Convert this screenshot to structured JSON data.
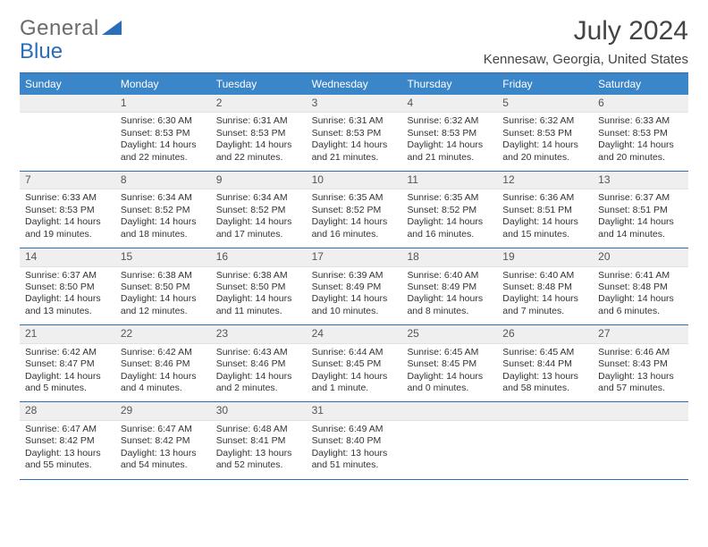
{
  "brand": {
    "part1": "General",
    "part2": "Blue"
  },
  "title": "July 2024",
  "subtitle": "Kennesaw, Georgia, United States",
  "dow": [
    "Sunday",
    "Monday",
    "Tuesday",
    "Wednesday",
    "Thursday",
    "Friday",
    "Saturday"
  ],
  "colors": {
    "header_bg": "#3a86c8",
    "border": "#2a6db8",
    "daynum_bg": "#efefef",
    "text": "#333333"
  },
  "weeks": [
    [
      {
        "n": "",
        "sr": "",
        "ss": "",
        "dl": ""
      },
      {
        "n": "1",
        "sr": "Sunrise: 6:30 AM",
        "ss": "Sunset: 8:53 PM",
        "dl": "Daylight: 14 hours and 22 minutes."
      },
      {
        "n": "2",
        "sr": "Sunrise: 6:31 AM",
        "ss": "Sunset: 8:53 PM",
        "dl": "Daylight: 14 hours and 22 minutes."
      },
      {
        "n": "3",
        "sr": "Sunrise: 6:31 AM",
        "ss": "Sunset: 8:53 PM",
        "dl": "Daylight: 14 hours and 21 minutes."
      },
      {
        "n": "4",
        "sr": "Sunrise: 6:32 AM",
        "ss": "Sunset: 8:53 PM",
        "dl": "Daylight: 14 hours and 21 minutes."
      },
      {
        "n": "5",
        "sr": "Sunrise: 6:32 AM",
        "ss": "Sunset: 8:53 PM",
        "dl": "Daylight: 14 hours and 20 minutes."
      },
      {
        "n": "6",
        "sr": "Sunrise: 6:33 AM",
        "ss": "Sunset: 8:53 PM",
        "dl": "Daylight: 14 hours and 20 minutes."
      }
    ],
    [
      {
        "n": "7",
        "sr": "Sunrise: 6:33 AM",
        "ss": "Sunset: 8:53 PM",
        "dl": "Daylight: 14 hours and 19 minutes."
      },
      {
        "n": "8",
        "sr": "Sunrise: 6:34 AM",
        "ss": "Sunset: 8:52 PM",
        "dl": "Daylight: 14 hours and 18 minutes."
      },
      {
        "n": "9",
        "sr": "Sunrise: 6:34 AM",
        "ss": "Sunset: 8:52 PM",
        "dl": "Daylight: 14 hours and 17 minutes."
      },
      {
        "n": "10",
        "sr": "Sunrise: 6:35 AM",
        "ss": "Sunset: 8:52 PM",
        "dl": "Daylight: 14 hours and 16 minutes."
      },
      {
        "n": "11",
        "sr": "Sunrise: 6:35 AM",
        "ss": "Sunset: 8:52 PM",
        "dl": "Daylight: 14 hours and 16 minutes."
      },
      {
        "n": "12",
        "sr": "Sunrise: 6:36 AM",
        "ss": "Sunset: 8:51 PM",
        "dl": "Daylight: 14 hours and 15 minutes."
      },
      {
        "n": "13",
        "sr": "Sunrise: 6:37 AM",
        "ss": "Sunset: 8:51 PM",
        "dl": "Daylight: 14 hours and 14 minutes."
      }
    ],
    [
      {
        "n": "14",
        "sr": "Sunrise: 6:37 AM",
        "ss": "Sunset: 8:50 PM",
        "dl": "Daylight: 14 hours and 13 minutes."
      },
      {
        "n": "15",
        "sr": "Sunrise: 6:38 AM",
        "ss": "Sunset: 8:50 PM",
        "dl": "Daylight: 14 hours and 12 minutes."
      },
      {
        "n": "16",
        "sr": "Sunrise: 6:38 AM",
        "ss": "Sunset: 8:50 PM",
        "dl": "Daylight: 14 hours and 11 minutes."
      },
      {
        "n": "17",
        "sr": "Sunrise: 6:39 AM",
        "ss": "Sunset: 8:49 PM",
        "dl": "Daylight: 14 hours and 10 minutes."
      },
      {
        "n": "18",
        "sr": "Sunrise: 6:40 AM",
        "ss": "Sunset: 8:49 PM",
        "dl": "Daylight: 14 hours and 8 minutes."
      },
      {
        "n": "19",
        "sr": "Sunrise: 6:40 AM",
        "ss": "Sunset: 8:48 PM",
        "dl": "Daylight: 14 hours and 7 minutes."
      },
      {
        "n": "20",
        "sr": "Sunrise: 6:41 AM",
        "ss": "Sunset: 8:48 PM",
        "dl": "Daylight: 14 hours and 6 minutes."
      }
    ],
    [
      {
        "n": "21",
        "sr": "Sunrise: 6:42 AM",
        "ss": "Sunset: 8:47 PM",
        "dl": "Daylight: 14 hours and 5 minutes."
      },
      {
        "n": "22",
        "sr": "Sunrise: 6:42 AM",
        "ss": "Sunset: 8:46 PM",
        "dl": "Daylight: 14 hours and 4 minutes."
      },
      {
        "n": "23",
        "sr": "Sunrise: 6:43 AM",
        "ss": "Sunset: 8:46 PM",
        "dl": "Daylight: 14 hours and 2 minutes."
      },
      {
        "n": "24",
        "sr": "Sunrise: 6:44 AM",
        "ss": "Sunset: 8:45 PM",
        "dl": "Daylight: 14 hours and 1 minute."
      },
      {
        "n": "25",
        "sr": "Sunrise: 6:45 AM",
        "ss": "Sunset: 8:45 PM",
        "dl": "Daylight: 14 hours and 0 minutes."
      },
      {
        "n": "26",
        "sr": "Sunrise: 6:45 AM",
        "ss": "Sunset: 8:44 PM",
        "dl": "Daylight: 13 hours and 58 minutes."
      },
      {
        "n": "27",
        "sr": "Sunrise: 6:46 AM",
        "ss": "Sunset: 8:43 PM",
        "dl": "Daylight: 13 hours and 57 minutes."
      }
    ],
    [
      {
        "n": "28",
        "sr": "Sunrise: 6:47 AM",
        "ss": "Sunset: 8:42 PM",
        "dl": "Daylight: 13 hours and 55 minutes."
      },
      {
        "n": "29",
        "sr": "Sunrise: 6:47 AM",
        "ss": "Sunset: 8:42 PM",
        "dl": "Daylight: 13 hours and 54 minutes."
      },
      {
        "n": "30",
        "sr": "Sunrise: 6:48 AM",
        "ss": "Sunset: 8:41 PM",
        "dl": "Daylight: 13 hours and 52 minutes."
      },
      {
        "n": "31",
        "sr": "Sunrise: 6:49 AM",
        "ss": "Sunset: 8:40 PM",
        "dl": "Daylight: 13 hours and 51 minutes."
      },
      {
        "n": "",
        "sr": "",
        "ss": "",
        "dl": ""
      },
      {
        "n": "",
        "sr": "",
        "ss": "",
        "dl": ""
      },
      {
        "n": "",
        "sr": "",
        "ss": "",
        "dl": ""
      }
    ]
  ]
}
